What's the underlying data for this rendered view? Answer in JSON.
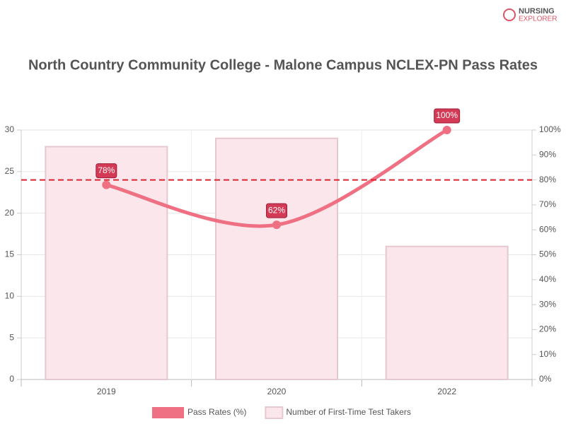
{
  "logo": [
    "NURSING",
    "EXPLORER"
  ],
  "chart_data": {
    "type": "combo",
    "title": "North Country Community College - Malone Campus NCLEX-PN Pass Rates",
    "categories": [
      "2019",
      "2020",
      "2022"
    ],
    "series": [
      {
        "name": "Pass Rates (%)",
        "type": "line",
        "axis": "y2",
        "color": "#f07083",
        "values": [
          78,
          62,
          100
        ],
        "value_labels": [
          "78%",
          "62%",
          "100%"
        ]
      },
      {
        "name": "Number of First-Time Test Takers",
        "type": "bar",
        "color": "#fbe6ec",
        "values": [
          28,
          29,
          16
        ]
      }
    ],
    "ylim": [
      0,
      30
    ],
    "yticks": [
      0,
      5,
      10,
      15,
      20,
      25,
      30
    ],
    "y2lim": [
      0,
      100
    ],
    "y2ticks": [
      {
        "value": 0,
        "label": "0%"
      },
      {
        "value": 10,
        "label": "10%"
      },
      {
        "value": 20,
        "label": "20%"
      },
      {
        "value": 30,
        "label": "30%"
      },
      {
        "value": 40,
        "label": "40%"
      },
      {
        "value": 50,
        "label": "50%"
      },
      {
        "value": 60,
        "label": "60%"
      },
      {
        "value": 70,
        "label": "70%"
      },
      {
        "value": 80,
        "label": "80%"
      },
      {
        "value": 90,
        "label": "90%"
      },
      {
        "value": 100,
        "label": "100%"
      }
    ],
    "reference_line": {
      "value": 80,
      "axis": "y2",
      "color": "#d9232f"
    },
    "grid": true
  }
}
